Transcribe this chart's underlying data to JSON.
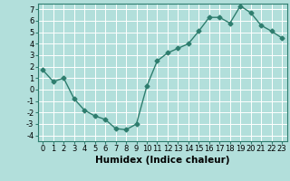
{
  "x": [
    0,
    1,
    2,
    3,
    4,
    5,
    6,
    7,
    8,
    9,
    10,
    11,
    12,
    13,
    14,
    15,
    16,
    17,
    18,
    19,
    20,
    21,
    22,
    23
  ],
  "y": [
    1.7,
    0.7,
    1.0,
    -0.8,
    -1.8,
    -2.3,
    -2.6,
    -3.4,
    -3.5,
    -3.0,
    0.3,
    2.5,
    3.2,
    3.6,
    4.0,
    5.1,
    6.3,
    6.3,
    5.8,
    7.3,
    6.7,
    5.6,
    5.1,
    4.5
  ],
  "line_color": "#2e7d6e",
  "marker": "D",
  "marker_size": 2.5,
  "background_color": "#b2dfdb",
  "grid_color": "#ffffff",
  "xlabel": "Humidex (Indice chaleur)",
  "xlim": [
    -0.5,
    23.5
  ],
  "ylim": [
    -4.5,
    7.5
  ],
  "yticks": [
    -4,
    -3,
    -2,
    -1,
    0,
    1,
    2,
    3,
    4,
    5,
    6,
    7
  ],
  "xticks": [
    0,
    1,
    2,
    3,
    4,
    5,
    6,
    7,
    8,
    9,
    10,
    11,
    12,
    13,
    14,
    15,
    16,
    17,
    18,
    19,
    20,
    21,
    22,
    23
  ],
  "tick_labelsize": 6,
  "xlabel_fontsize": 7.5,
  "linewidth": 1.0
}
